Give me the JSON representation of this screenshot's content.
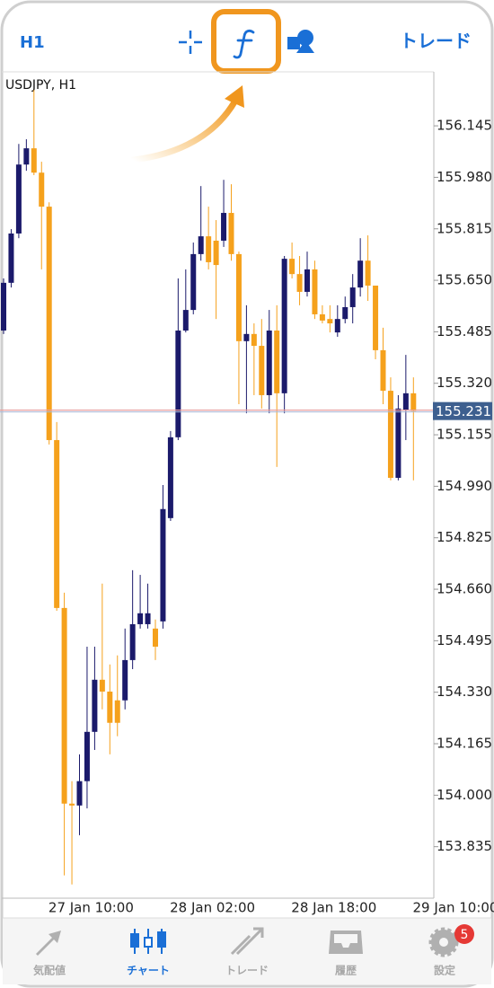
{
  "toolbar": {
    "timeframe": "H1",
    "trade": "トレード"
  },
  "chart_data": {
    "type": "candlestick",
    "title": "USDJPY, H1",
    "categories": [
      null,
      null,
      null,
      null,
      null,
      null,
      null,
      null,
      null,
      null,
      null,
      null,
      "27 Jan 10:00",
      null,
      null,
      null,
      null,
      null,
      null,
      null,
      null,
      null,
      null,
      null,
      null,
      null,
      null,
      null,
      "28 Jan 02:00",
      null,
      null,
      null,
      null,
      null,
      null,
      null,
      null,
      null,
      null,
      null,
      null,
      null,
      null,
      null,
      "28 Jan 18:00",
      null,
      null,
      null,
      null,
      null,
      null,
      null,
      null,
      null,
      null,
      null,
      null,
      null,
      null,
      null,
      "29 Jan 10:00"
    ],
    "open": [
      155.489,
      155.642,
      155.8,
      156.021,
      156.073,
      155.995,
      155.886,
      155.138,
      154.6,
      153.973,
      153.967,
      154.045,
      154.203,
      154.37,
      154.332,
      154.304,
      154.304,
      154.433,
      154.548,
      154.548,
      154.534,
      154.557,
      154.888,
      155.147,
      155.489,
      155.555,
      155.734,
      155.791,
      155.777,
      155.777,
      155.866,
      155.734,
      155.455,
      155.478,
      155.44,
      155.282,
      155.489,
      155.288,
      155.719,
      155.67,
      155.613,
      155.685,
      155.541,
      155.526,
      155.483,
      155.526,
      155.564,
      155.627,
      155.713,
      155.633,
      155.426,
      155.296,
      155.017,
      155.233,
      155.288,
      null,
      null,
      null,
      null,
      null,
      null
    ],
    "high": [
      155.656,
      155.814,
      156.087,
      156.102,
      156.26,
      156.03,
      155.9,
      155.196,
      154.649,
      154.045,
      154.131,
      154.476,
      154.476,
      154.678,
      154.419,
      154.448,
      154.534,
      154.721,
      154.706,
      154.678,
      154.563,
      154.994,
      155.167,
      155.656,
      155.685,
      155.771,
      155.952,
      155.886,
      155.843,
      155.972,
      155.958,
      155.742,
      155.57,
      155.512,
      155.526,
      155.555,
      155.57,
      155.728,
      155.771,
      155.728,
      155.742,
      155.713,
      155.57,
      155.57,
      155.57,
      155.598,
      155.67,
      155.785,
      155.794,
      155.633,
      155.498,
      155.339,
      155.282,
      155.411,
      155.339,
      null,
      null,
      null,
      null,
      null,
      null
    ],
    "low": [
      155.478,
      155.627,
      155.785,
      156.001,
      155.987,
      155.685,
      155.124,
      154.591,
      153.743,
      153.714,
      153.872,
      153.958,
      154.145,
      154.275,
      154.131,
      154.189,
      154.275,
      154.404,
      154.534,
      154.534,
      154.433,
      154.534,
      154.879,
      155.138,
      155.483,
      155.541,
      155.713,
      155.685,
      155.526,
      155.757,
      155.713,
      155.253,
      155.224,
      155.282,
      155.239,
      155.224,
      155.052,
      155.224,
      155.656,
      155.57,
      155.598,
      155.526,
      155.512,
      155.483,
      155.469,
      155.512,
      155.512,
      155.598,
      155.584,
      155.397,
      155.253,
      155.009,
      155.009,
      155.138,
      155.009,
      null,
      null,
      null,
      null,
      null,
      null
    ],
    "close": [
      155.642,
      155.8,
      156.021,
      156.073,
      155.995,
      155.886,
      155.138,
      154.6,
      153.973,
      153.967,
      154.045,
      154.203,
      154.37,
      154.332,
      154.232,
      154.232,
      154.433,
      154.548,
      154.583,
      154.583,
      154.476,
      154.917,
      155.147,
      155.489,
      155.555,
      155.734,
      155.791,
      155.708,
      155.699,
      155.866,
      155.734,
      155.455,
      155.478,
      155.44,
      155.282,
      155.489,
      155.288,
      155.719,
      155.67,
      155.613,
      155.685,
      155.541,
      155.521,
      155.512,
      155.526,
      155.564,
      155.627,
      155.713,
      155.633,
      155.426,
      155.296,
      155.017,
      155.239,
      155.288,
      155.231,
      null,
      null,
      null,
      null,
      null,
      null
    ],
    "up_color": "#1b1a6b",
    "down_color": "#f5a11c",
    "ylim": [
      153.67,
      156.318
    ],
    "yticks": [
      {
        "value": 156.145,
        "label": "156.145"
      },
      {
        "value": 155.98,
        "label": "155.980"
      },
      {
        "value": 155.815,
        "label": "155.815"
      },
      {
        "value": 155.65,
        "label": "155.650"
      },
      {
        "value": 155.485,
        "label": "155.485"
      },
      {
        "value": 155.32,
        "label": "155.320"
      },
      {
        "value": 155.155,
        "label": "155.155"
      },
      {
        "value": 154.99,
        "label": "154.990"
      },
      {
        "value": 154.825,
        "label": "154.825"
      },
      {
        "value": 154.66,
        "label": "154.660"
      },
      {
        "value": 154.495,
        "label": "154.495"
      },
      {
        "value": 154.33,
        "label": "154.330"
      },
      {
        "value": 154.165,
        "label": "154.165"
      },
      {
        "value": 154,
        "label": "154.000"
      },
      {
        "value": 153.835,
        "label": "153.835"
      }
    ],
    "current_price": 155.231,
    "current_price_color": "#3d5f8f",
    "grid": false
  },
  "tabbar": {
    "items": [
      "気配値",
      "チャート",
      "トレード",
      "履歴",
      "設定"
    ],
    "active": 1,
    "badge": 5
  }
}
